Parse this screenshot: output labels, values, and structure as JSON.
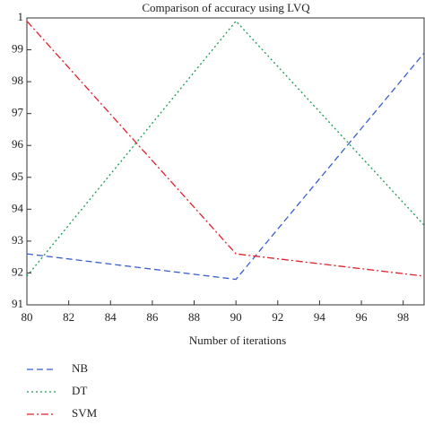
{
  "chart_data": {
    "type": "line",
    "title": "Comparison of accuracy using LVQ",
    "x_label": "Number of iterations",
    "x": [
      80,
      90,
      99
    ],
    "series": [
      {
        "name": "NB",
        "color": "#3a5fcd",
        "style": "dashed",
        "values": [
          92.6,
          91.8,
          98.9
        ]
      },
      {
        "name": "DT",
        "color": "#1a9a50",
        "style": "dotted",
        "values": [
          91.9,
          99.9,
          93.5
        ]
      },
      {
        "name": "SVM",
        "color": "#e0202a",
        "style": "dashdot",
        "values": [
          99.9,
          92.6,
          91.9
        ]
      }
    ],
    "xlim": [
      80,
      99
    ],
    "xticks": [
      80,
      82,
      84,
      86,
      88,
      90,
      92,
      94,
      96,
      98
    ],
    "ylim": [
      91,
      100
    ],
    "yticks": [
      91,
      92,
      93,
      94,
      95,
      96,
      97,
      98,
      99,
      {
        "value": 100,
        "label": "1"
      }
    ]
  }
}
